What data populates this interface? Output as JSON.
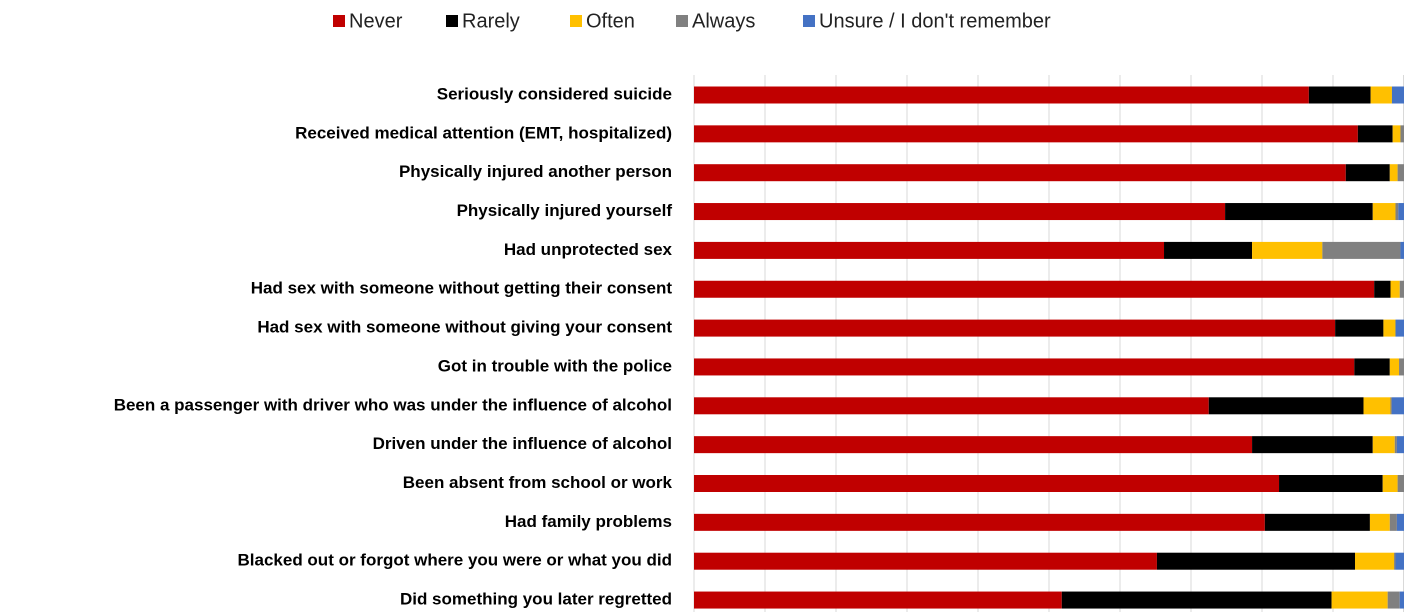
{
  "chart_data": {
    "type": "stacked-bar-horizontal",
    "categories": [
      "Seriously considered suicide",
      "Received medical attention (EMT, hospitalized)",
      "Physically injured another person",
      "Physically injured yourself",
      "Had unprotected sex",
      "Had sex with someone without getting their consent",
      "Had sex with someone without giving your consent",
      "Got in trouble with the police",
      "Been a passenger with driver who was under the influence of alcohol",
      "Driven under the influence of alcohol",
      "Been absent from school or work",
      "Had family problems",
      "Blacked out or forgot where you were or what you did",
      "Did something you later regretted"
    ],
    "series": [
      {
        "name": "Never",
        "color": "#c00000",
        "values": [
          86.6,
          93.5,
          91.8,
          74.8,
          66.2,
          95.8,
          90.3,
          93.0,
          72.5,
          78.6,
          82.4,
          80.4,
          65.2,
          51.8
        ]
      },
      {
        "name": "Rarely",
        "color": "#000000",
        "values": [
          8.7,
          4.9,
          6.2,
          20.8,
          12.4,
          2.3,
          6.8,
          5.0,
          21.8,
          17.0,
          14.6,
          14.8,
          27.9,
          38.0
        ]
      },
      {
        "name": "Often",
        "color": "#ffc000",
        "values": [
          3.0,
          1.1,
          1.1,
          3.2,
          9.9,
          1.3,
          1.7,
          1.3,
          3.8,
          3.1,
          2.1,
          2.8,
          5.5,
          7.9
        ]
      },
      {
        "name": "Always",
        "color": "#808080",
        "values": [
          0,
          0.5,
          0.9,
          0.4,
          11.0,
          0.6,
          0,
          0.7,
          0.2,
          0.3,
          0.9,
          1.0,
          0.2,
          1.7
        ]
      },
      {
        "name": "Unsure / I don't remember",
        "color": "#4472c4",
        "values": [
          1.7,
          0,
          0,
          0.8,
          0.5,
          0,
          1.2,
          0,
          1.7,
          1.0,
          0,
          1.0,
          1.2,
          0.6
        ]
      }
    ],
    "xlim": [
      0,
      100
    ],
    "xticks": [
      0,
      10,
      20,
      30,
      40,
      50,
      60,
      70,
      80,
      90,
      100
    ],
    "grid": true,
    "legend": "top"
  }
}
